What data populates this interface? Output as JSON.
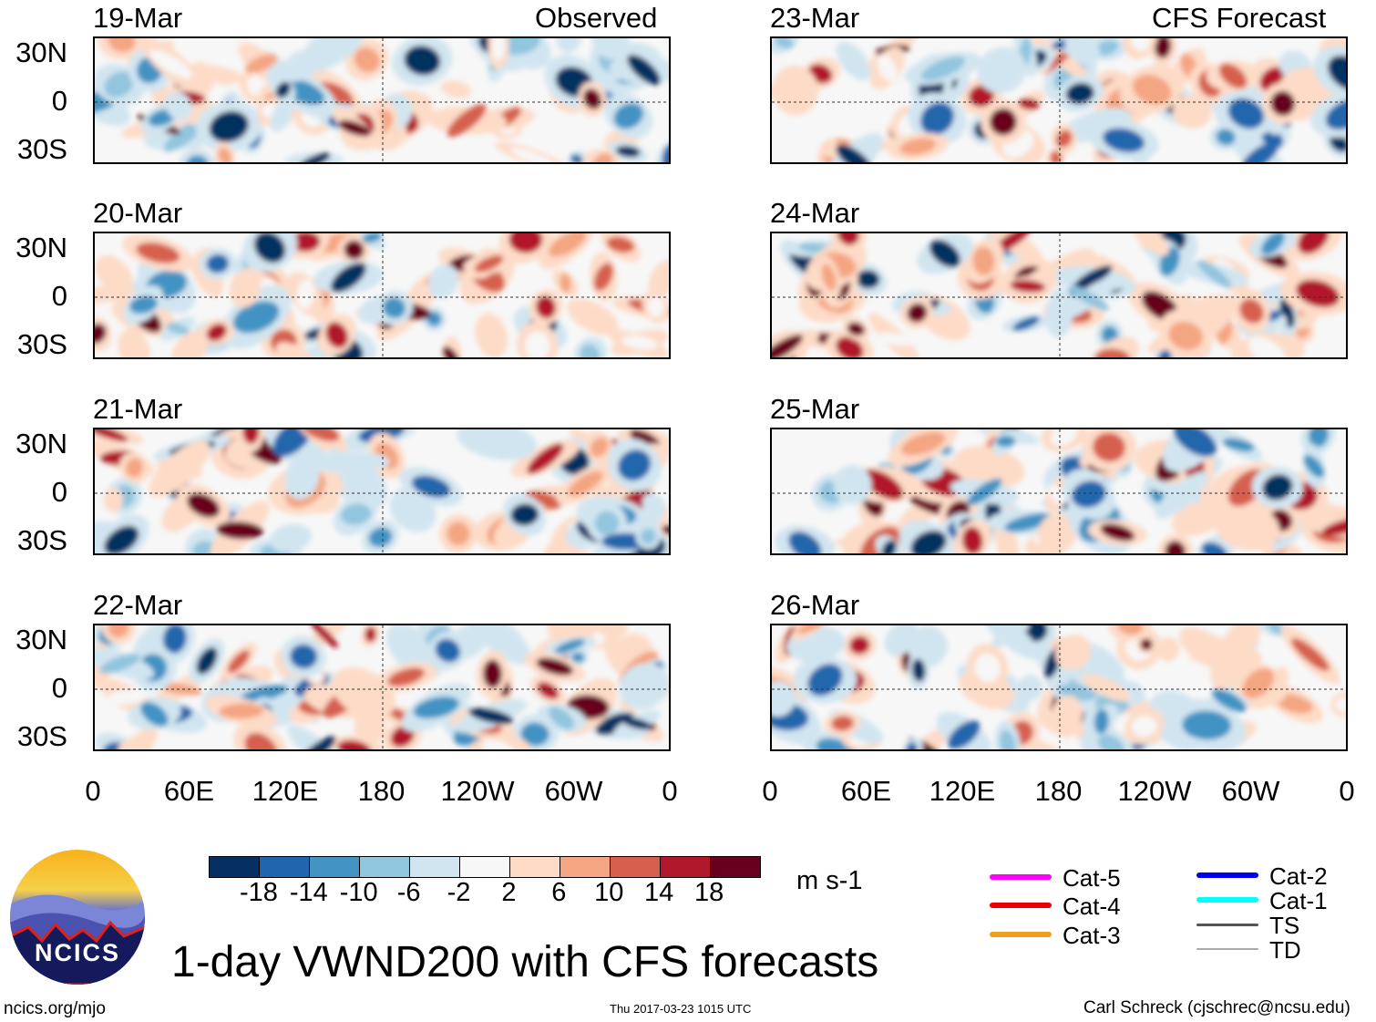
{
  "header": {
    "left_label": "Observed",
    "right_label": "CFS Forecast"
  },
  "panels": {
    "observed": [
      "19-Mar",
      "20-Mar",
      "21-Mar",
      "22-Mar"
    ],
    "forecast": [
      "23-Mar",
      "24-Mar",
      "25-Mar",
      "26-Mar"
    ]
  },
  "lat_labels": [
    "30N",
    "0",
    "30S"
  ],
  "lon_labels": [
    "0",
    "60E",
    "120E",
    "180",
    "120W",
    "60W",
    "0"
  ],
  "colorbar": {
    "labels": [
      "-18",
      "-14",
      "-10",
      "-6",
      "-2",
      "2",
      "6",
      "10",
      "14",
      "18"
    ],
    "colors": [
      "#053061",
      "#2166ac",
      "#4393c3",
      "#92c5de",
      "#d1e5f0",
      "#f7f7f7",
      "#fddbc7",
      "#f4a582",
      "#d6604d",
      "#b2182b",
      "#67001f"
    ],
    "units": "m s-1"
  },
  "legend": [
    {
      "label": "Cat-5",
      "color": "#ff00ff"
    },
    {
      "label": "Cat-4",
      "color": "#ee0000"
    },
    {
      "label": "Cat-3",
      "color": "#f0a020"
    },
    {
      "label": "Cat-2",
      "color": "#0000ee"
    },
    {
      "label": "Cat-1",
      "color": "#00ffff"
    },
    {
      "label": "TS",
      "color": "#555555"
    },
    {
      "label": "TD",
      "color": "#aaaaaa"
    }
  ],
  "title": "1-day VWND200 with CFS forecasts",
  "logo_text": "NCICS",
  "footer": {
    "left": "ncics.org/mjo",
    "center": "Thu 2017-03-23 1015 UTC",
    "right": "Carl Schreck (cjschrec@ncsu.edu)"
  }
}
